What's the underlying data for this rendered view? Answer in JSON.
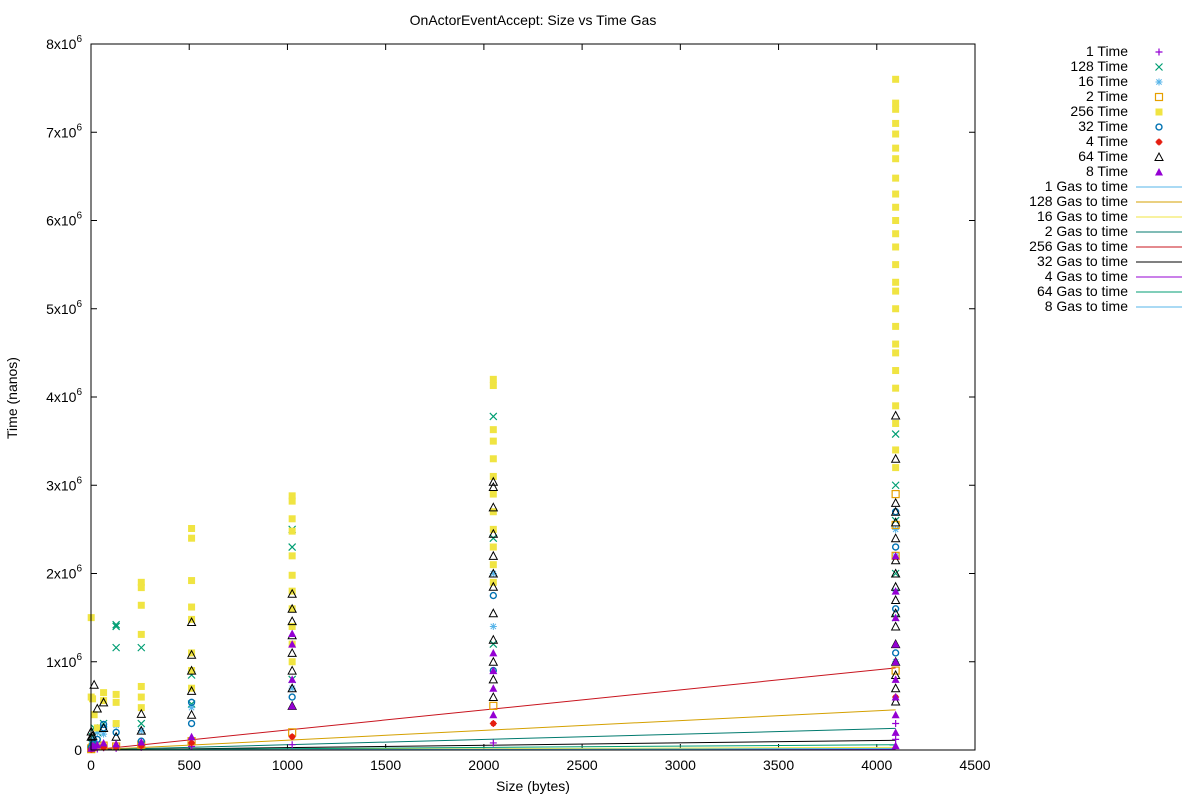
{
  "chart_data": {
    "type": "scatter",
    "title": "OnActorEventAccept: Size vs Time  Gas",
    "xlabel": "Size (bytes)",
    "ylabel": "Time (nanos)",
    "xlim": [
      0,
      4500
    ],
    "ylim": [
      0,
      8000000
    ],
    "x_ticks": [
      0,
      500,
      1000,
      1500,
      2000,
      2500,
      3000,
      3500,
      4000,
      4500
    ],
    "y_ticks": [
      {
        "value": 0,
        "mantissa": "0",
        "exp": ""
      },
      {
        "value": 1000000,
        "mantissa": "1x10",
        "exp": "6"
      },
      {
        "value": 2000000,
        "mantissa": "2x10",
        "exp": "6"
      },
      {
        "value": 3000000,
        "mantissa": "3x10",
        "exp": "6"
      },
      {
        "value": 4000000,
        "mantissa": "4x10",
        "exp": "6"
      },
      {
        "value": 5000000,
        "mantissa": "5x10",
        "exp": "6"
      },
      {
        "value": 6000000,
        "mantissa": "6x10",
        "exp": "6"
      },
      {
        "value": 7000000,
        "mantissa": "7x10",
        "exp": "6"
      },
      {
        "value": 8000000,
        "mantissa": "8x10",
        "exp": "6"
      }
    ],
    "legend_position": "outside-right",
    "series": [
      {
        "name": "1 Time",
        "marker": "plus",
        "color": "#9400d3",
        "points": [
          [
            1,
            5000
          ],
          [
            1,
            12000
          ],
          [
            1,
            30000
          ],
          [
            2,
            8000
          ],
          [
            4,
            15000
          ],
          [
            8,
            9000
          ],
          [
            16,
            20000
          ],
          [
            32,
            11000
          ],
          [
            64,
            25000
          ],
          [
            128,
            18000
          ],
          [
            256,
            30000
          ],
          [
            512,
            40000
          ],
          [
            1024,
            60000
          ],
          [
            2048,
            80000
          ],
          [
            4096,
            120000
          ],
          [
            4096,
            300000
          ]
        ]
      },
      {
        "name": "128 Time",
        "marker": "x",
        "color": "#009e73",
        "points": [
          [
            1,
            80000
          ],
          [
            8,
            150000
          ],
          [
            16,
            250000
          ],
          [
            32,
            200000
          ],
          [
            64,
            300000
          ],
          [
            128,
            1420000
          ],
          [
            128,
            1400000
          ],
          [
            128,
            1160000
          ],
          [
            256,
            1160000
          ],
          [
            256,
            300000
          ],
          [
            512,
            850000
          ],
          [
            512,
            520000
          ],
          [
            1024,
            2500000
          ],
          [
            1024,
            2300000
          ],
          [
            1024,
            800000
          ],
          [
            2048,
            3780000
          ],
          [
            2048,
            2400000
          ],
          [
            2048,
            1200000
          ],
          [
            4096,
            3580000
          ],
          [
            4096,
            3000000
          ],
          [
            4096,
            2600000
          ],
          [
            4096,
            2000000
          ],
          [
            4096,
            1500000
          ]
        ]
      },
      {
        "name": "16 Time",
        "marker": "star",
        "color": "#56b4e9",
        "points": [
          [
            1,
            40000
          ],
          [
            8,
            90000
          ],
          [
            16,
            120000
          ],
          [
            32,
            200000
          ],
          [
            64,
            180000
          ],
          [
            128,
            280000
          ],
          [
            256,
            220000
          ],
          [
            512,
            480000
          ],
          [
            1024,
            700000
          ],
          [
            2048,
            2000000
          ],
          [
            2048,
            1400000
          ],
          [
            4096,
            2500000
          ],
          [
            4096,
            2200000
          ],
          [
            4096,
            1800000
          ],
          [
            4096,
            1000000
          ]
        ]
      },
      {
        "name": "2 Time",
        "marker": "square-open",
        "color": "#e69f00",
        "points": [
          [
            1,
            10000
          ],
          [
            2,
            20000
          ],
          [
            8,
            35000
          ],
          [
            16,
            40000
          ],
          [
            64,
            50000
          ],
          [
            128,
            40000
          ],
          [
            256,
            60000
          ],
          [
            512,
            100000
          ],
          [
            1024,
            200000
          ],
          [
            2048,
            500000
          ],
          [
            4096,
            2900000
          ],
          [
            4096,
            2550000
          ],
          [
            4096,
            2200000
          ],
          [
            4096,
            900000
          ]
        ]
      },
      {
        "name": "256 Time",
        "marker": "square-filled",
        "color": "#f0e442",
        "points": [
          [
            1,
            1500000
          ],
          [
            1,
            600000
          ],
          [
            8,
            580000
          ],
          [
            16,
            400000
          ],
          [
            32,
            250000
          ],
          [
            64,
            650000
          ],
          [
            64,
            560000
          ],
          [
            128,
            630000
          ],
          [
            128,
            540000
          ],
          [
            128,
            300000
          ],
          [
            256,
            1900000
          ],
          [
            256,
            1840000
          ],
          [
            256,
            1640000
          ],
          [
            256,
            1310000
          ],
          [
            256,
            720000
          ],
          [
            256,
            600000
          ],
          [
            256,
            480000
          ],
          [
            512,
            2510000
          ],
          [
            512,
            2400000
          ],
          [
            512,
            1920000
          ],
          [
            512,
            1620000
          ],
          [
            512,
            1480000
          ],
          [
            512,
            1100000
          ],
          [
            512,
            900000
          ],
          [
            512,
            700000
          ],
          [
            1024,
            2880000
          ],
          [
            1024,
            2820000
          ],
          [
            1024,
            2620000
          ],
          [
            1024,
            2480000
          ],
          [
            1024,
            2200000
          ],
          [
            1024,
            1980000
          ],
          [
            1024,
            1800000
          ],
          [
            1024,
            1600000
          ],
          [
            1024,
            1400000
          ],
          [
            1024,
            1200000
          ],
          [
            1024,
            1000000
          ],
          [
            2048,
            4200000
          ],
          [
            2048,
            4130000
          ],
          [
            2048,
            3630000
          ],
          [
            2048,
            3500000
          ],
          [
            2048,
            3300000
          ],
          [
            2048,
            3100000
          ],
          [
            2048,
            2900000
          ],
          [
            2048,
            2700000
          ],
          [
            2048,
            2500000
          ],
          [
            2048,
            2300000
          ],
          [
            2048,
            2100000
          ],
          [
            2048,
            1900000
          ],
          [
            4096,
            7600000
          ],
          [
            4096,
            7330000
          ],
          [
            4096,
            7260000
          ],
          [
            4096,
            7100000
          ],
          [
            4096,
            6980000
          ],
          [
            4096,
            6820000
          ],
          [
            4096,
            6700000
          ],
          [
            4096,
            6480000
          ],
          [
            4096,
            6300000
          ],
          [
            4096,
            6150000
          ],
          [
            4096,
            6000000
          ],
          [
            4096,
            5850000
          ],
          [
            4096,
            5700000
          ],
          [
            4096,
            5500000
          ],
          [
            4096,
            5300000
          ],
          [
            4096,
            5200000
          ],
          [
            4096,
            5000000
          ],
          [
            4096,
            4800000
          ],
          [
            4096,
            4600000
          ],
          [
            4096,
            4500000
          ],
          [
            4096,
            4300000
          ],
          [
            4096,
            4100000
          ],
          [
            4096,
            3900000
          ],
          [
            4096,
            3700000
          ],
          [
            4096,
            3400000
          ],
          [
            4096,
            3200000
          ]
        ]
      },
      {
        "name": "32 Time",
        "marker": "circle-open",
        "color": "#0072b2",
        "points": [
          [
            1,
            30000
          ],
          [
            8,
            60000
          ],
          [
            16,
            90000
          ],
          [
            32,
            120000
          ],
          [
            64,
            290000
          ],
          [
            64,
            250000
          ],
          [
            128,
            200000
          ],
          [
            256,
            100000
          ],
          [
            512,
            540000
          ],
          [
            512,
            300000
          ],
          [
            1024,
            600000
          ],
          [
            2048,
            1750000
          ],
          [
            2048,
            900000
          ],
          [
            4096,
            2700000
          ],
          [
            4096,
            2300000
          ],
          [
            4096,
            1600000
          ],
          [
            4096,
            1100000
          ]
        ]
      },
      {
        "name": "4 Time",
        "marker": "star-filled",
        "color": "#e51e10",
        "points": [
          [
            1,
            8000
          ],
          [
            4,
            12000
          ],
          [
            16,
            25000
          ],
          [
            64,
            30000
          ],
          [
            128,
            40000
          ],
          [
            256,
            50000
          ],
          [
            512,
            80000
          ],
          [
            1024,
            150000
          ],
          [
            2048,
            300000
          ],
          [
            4096,
            600000
          ]
        ]
      },
      {
        "name": "64 Time",
        "marker": "triangle-open",
        "color": "#000000",
        "points": [
          [
            1,
            210000
          ],
          [
            1,
            150000
          ],
          [
            8,
            160000
          ],
          [
            16,
            740000
          ],
          [
            32,
            470000
          ],
          [
            64,
            540000
          ],
          [
            64,
            250000
          ],
          [
            128,
            150000
          ],
          [
            256,
            410000
          ],
          [
            256,
            220000
          ],
          [
            512,
            1450000
          ],
          [
            512,
            1080000
          ],
          [
            512,
            900000
          ],
          [
            512,
            670000
          ],
          [
            512,
            400000
          ],
          [
            1024,
            1770000
          ],
          [
            1024,
            1600000
          ],
          [
            1024,
            1460000
          ],
          [
            1024,
            1300000
          ],
          [
            1024,
            1100000
          ],
          [
            1024,
            900000
          ],
          [
            1024,
            700000
          ],
          [
            1024,
            500000
          ],
          [
            2048,
            3040000
          ],
          [
            2048,
            2980000
          ],
          [
            2048,
            2750000
          ],
          [
            2048,
            2450000
          ],
          [
            2048,
            2200000
          ],
          [
            2048,
            2000000
          ],
          [
            2048,
            1850000
          ],
          [
            2048,
            1550000
          ],
          [
            2048,
            1250000
          ],
          [
            2048,
            1000000
          ],
          [
            2048,
            800000
          ],
          [
            2048,
            600000
          ],
          [
            4096,
            3790000
          ],
          [
            4096,
            3300000
          ],
          [
            4096,
            2800000
          ],
          [
            4096,
            2700000
          ],
          [
            4096,
            2580000
          ],
          [
            4096,
            2400000
          ],
          [
            4096,
            2150000
          ],
          [
            4096,
            2000000
          ],
          [
            4096,
            1850000
          ],
          [
            4096,
            1700000
          ],
          [
            4096,
            1550000
          ],
          [
            4096,
            1400000
          ],
          [
            4096,
            1200000
          ],
          [
            4096,
            1000000
          ],
          [
            4096,
            850000
          ],
          [
            4096,
            700000
          ],
          [
            4096,
            550000
          ]
        ]
      },
      {
        "name": "8 Time",
        "marker": "triangle-filled",
        "color": "#9400d3",
        "points": [
          [
            1,
            20000
          ],
          [
            4,
            30000
          ],
          [
            8,
            50000
          ],
          [
            16,
            40000
          ],
          [
            32,
            60000
          ],
          [
            64,
            80000
          ],
          [
            128,
            70000
          ],
          [
            256,
            90000
          ],
          [
            512,
            150000
          ],
          [
            1024,
            1320000
          ],
          [
            1024,
            1200000
          ],
          [
            1024,
            800000
          ],
          [
            1024,
            500000
          ],
          [
            2048,
            1100000
          ],
          [
            2048,
            900000
          ],
          [
            2048,
            700000
          ],
          [
            2048,
            400000
          ],
          [
            4096,
            2200000
          ],
          [
            4096,
            1800000
          ],
          [
            4096,
            1500000
          ],
          [
            4096,
            1200000
          ],
          [
            4096,
            1000000
          ],
          [
            4096,
            800000
          ],
          [
            4096,
            600000
          ],
          [
            4096,
            400000
          ],
          [
            4096,
            200000
          ],
          [
            4096,
            50000
          ]
        ]
      },
      {
        "name": "1 Gas to time",
        "line": true,
        "color": "#56b4e9",
        "x": [
          0,
          4096
        ],
        "y": [
          0,
          20000
        ]
      },
      {
        "name": "128 Gas to time",
        "line": true,
        "color": "#d4a000",
        "x": [
          0,
          4096
        ],
        "y": [
          0,
          455000
        ]
      },
      {
        "name": "16 Gas to time",
        "line": true,
        "color": "#f0e442",
        "x": [
          0,
          4096
        ],
        "y": [
          0,
          30000
        ]
      },
      {
        "name": "2 Gas to time",
        "line": true,
        "color": "#007a6e",
        "x": [
          0,
          4096
        ],
        "y": [
          0,
          245000
        ]
      },
      {
        "name": "256 Gas to time",
        "line": true,
        "color": "#c8141e",
        "x": [
          0,
          4096
        ],
        "y": [
          0,
          930000
        ]
      },
      {
        "name": "32 Gas to time",
        "line": true,
        "color": "#000000",
        "x": [
          0,
          4096
        ],
        "y": [
          0,
          110000
        ]
      },
      {
        "name": "4 Gas to time",
        "line": true,
        "color": "#9400d3",
        "x": [
          0,
          4096
        ],
        "y": [
          0,
          8000
        ]
      },
      {
        "name": "64 Gas to time",
        "line": true,
        "color": "#009e73",
        "x": [
          0,
          4096
        ],
        "y": [
          0,
          60000
        ]
      },
      {
        "name": "8 Gas to time",
        "line": true,
        "color": "#56b4e9",
        "x": [
          0,
          4096
        ],
        "y": [
          0,
          15000
        ]
      }
    ]
  }
}
